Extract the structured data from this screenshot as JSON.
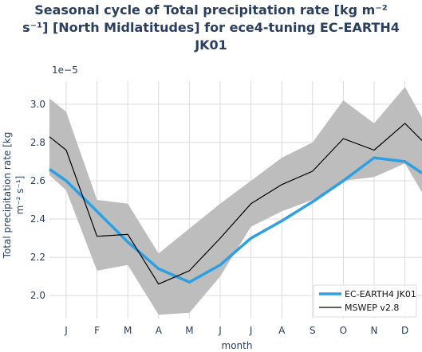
{
  "chart_data": {
    "type": "line",
    "title_lines": [
      "Seasonal cycle of Total precipitation rate [kg m⁻²",
      "s⁻¹] [North Midlatitudes] for ece4-tuning EC-EARTH4",
      "JK01"
    ],
    "xlabel": "month",
    "ylabel_lines": [
      "Total precipitation rate [kg",
      "m⁻² s⁻¹]"
    ],
    "y_scale_label": "1e−5",
    "categories": [
      "J",
      "F",
      "M",
      "A",
      "M",
      "J",
      "J",
      "A",
      "S",
      "O",
      "N",
      "D"
    ],
    "ylim": [
      1.88,
      3.12
    ],
    "yticks": [
      2.0,
      2.2,
      2.4,
      2.6,
      2.8,
      3.0
    ],
    "ytick_labels": [
      "2.0",
      "2.2",
      "2.4",
      "2.6",
      "2.8",
      "3.0"
    ],
    "x_edge_values": {
      "left": {
        "EC-EARTH4 JK01": 2.66,
        "MSWEP v2.8": 2.83,
        "band_low": 2.63,
        "band_high": 3.03
      },
      "right": {
        "EC-EARTH4 JK01": 2.64,
        "MSWEP v2.8": 2.81,
        "band_low": 2.54,
        "band_high": 2.93
      }
    },
    "series": [
      {
        "name": "EC-EARTH4 JK01",
        "color": "#2e9fe0",
        "values": [
          2.6,
          2.44,
          2.28,
          2.14,
          2.07,
          2.16,
          2.3,
          2.39,
          2.49,
          2.6,
          2.72,
          2.7
        ]
      },
      {
        "name": "MSWEP v2.8",
        "color": "#000000",
        "values": [
          2.76,
          2.31,
          2.32,
          2.06,
          2.13,
          2.3,
          2.48,
          2.58,
          2.65,
          2.82,
          2.76,
          2.9
        ]
      }
    ],
    "band": {
      "color": "#bdbdbd",
      "low": [
        2.55,
        2.13,
        2.16,
        1.9,
        1.91,
        2.1,
        2.36,
        2.44,
        2.5,
        2.6,
        2.62,
        2.69
      ],
      "high": [
        2.96,
        2.5,
        2.48,
        2.22,
        2.35,
        2.48,
        2.6,
        2.72,
        2.8,
        3.02,
        2.9,
        3.09
      ]
    },
    "grid": true,
    "legend_position": "bottom-right"
  }
}
